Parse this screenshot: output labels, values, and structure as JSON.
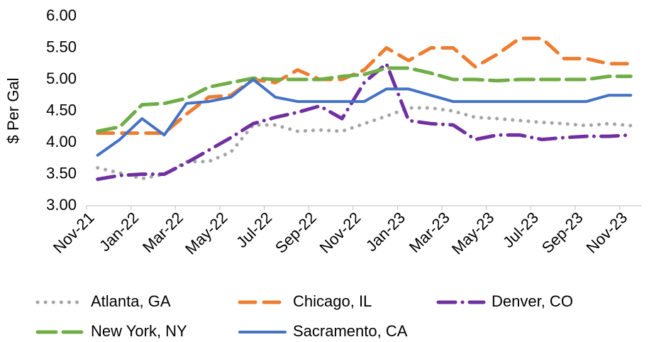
{
  "chart_data": {
    "type": "line",
    "y_label": "$ Per Gal",
    "categories": [
      "Nov-21",
      null,
      "Jan-22",
      null,
      "Mar-22",
      null,
      "May-22",
      null,
      "Jul-22",
      null,
      "Sep-22",
      null,
      "Nov-22",
      null,
      "Jan-23",
      null,
      "Mar-23",
      null,
      "May-23",
      null,
      "Jul-23",
      null,
      "Sep-23",
      null,
      "Nov-23"
    ],
    "ylim": [
      3,
      6
    ],
    "yticks": [
      {
        "value": 3,
        "label": "3.00"
      },
      {
        "value": 3.5,
        "label": "3.50"
      },
      {
        "value": 4,
        "label": "4.00"
      },
      {
        "value": 4.5,
        "label": "4.50"
      },
      {
        "value": 5,
        "label": "5.00"
      },
      {
        "value": 5.5,
        "label": "5.50"
      },
      {
        "value": 6,
        "label": "6.00"
      }
    ],
    "grid": false,
    "legend": "bottom",
    "series": [
      {
        "name": "Atlanta, GA",
        "color": "#a5a5a5",
        "style": "dot",
        "values": [
          3.6,
          3.52,
          3.43,
          3.5,
          3.7,
          3.7,
          3.85,
          4.28,
          4.28,
          4.18,
          4.2,
          4.18,
          4.3,
          4.42,
          4.55,
          4.55,
          4.5,
          4.4,
          4.38,
          4.35,
          4.32,
          4.3,
          4.27,
          4.3,
          4.27
        ]
      },
      {
        "name": "Chicago, IL",
        "color": "#ed7d31",
        "style": "dash",
        "values": [
          4.15,
          4.15,
          4.15,
          4.15,
          4.45,
          4.72,
          4.75,
          5.0,
          4.95,
          5.15,
          5.0,
          5.0,
          5.15,
          5.5,
          5.3,
          5.5,
          5.5,
          5.2,
          5.4,
          5.65,
          5.65,
          5.33,
          5.33,
          5.25,
          5.25
        ]
      },
      {
        "name": "Denver, CO",
        "color": "#7030a0",
        "style": "dashdot",
        "values": [
          3.42,
          3.48,
          3.5,
          3.5,
          3.68,
          3.88,
          4.08,
          4.3,
          4.4,
          4.48,
          4.58,
          4.38,
          4.95,
          5.25,
          4.35,
          4.3,
          4.28,
          4.05,
          4.12,
          4.12,
          4.05,
          4.08,
          4.1,
          4.1,
          4.12
        ]
      },
      {
        "name": "New York, NY",
        "color": "#70ad47",
        "style": "longdash",
        "values": [
          4.18,
          4.25,
          4.6,
          4.62,
          4.7,
          4.88,
          4.95,
          5.02,
          5.0,
          5.0,
          5.0,
          5.05,
          5.08,
          5.18,
          5.18,
          5.1,
          5.0,
          5.0,
          4.98,
          5.0,
          5.0,
          5.0,
          5.0,
          5.05,
          5.05
        ]
      },
      {
        "name": "Sacramento, CA",
        "color": "#4472c4",
        "style": "solid",
        "values": [
          3.8,
          4.05,
          4.38,
          4.12,
          4.62,
          4.65,
          4.72,
          5.0,
          4.72,
          4.65,
          4.65,
          4.65,
          4.65,
          4.85,
          4.85,
          4.75,
          4.65,
          4.65,
          4.65,
          4.65,
          4.65,
          4.65,
          4.65,
          4.75,
          4.75
        ]
      }
    ]
  }
}
